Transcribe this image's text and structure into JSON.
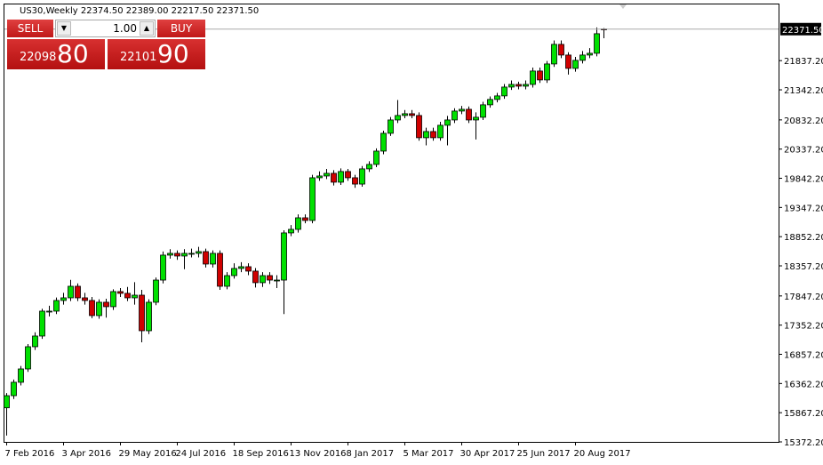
{
  "chart_data": {
    "type": "candlestick",
    "title": "US30,Weekly  22374.50 22389.00 22217.50 22371.50",
    "categories": [
      "7 Feb 2016",
      null,
      null,
      null,
      null,
      null,
      null,
      null,
      "3 Apr 2016",
      null,
      null,
      null,
      null,
      null,
      null,
      null,
      "29 May 2016",
      null,
      null,
      null,
      null,
      null,
      null,
      null,
      "24 Jul 2016",
      null,
      null,
      null,
      null,
      null,
      null,
      null,
      "18 Sep 2016",
      null,
      null,
      null,
      null,
      null,
      null,
      null,
      "13 Nov 2016",
      null,
      null,
      null,
      null,
      null,
      null,
      null,
      "8 Jan 2017",
      null,
      null,
      null,
      null,
      null,
      null,
      null,
      "5 Mar 2017",
      null,
      null,
      null,
      null,
      null,
      null,
      null,
      "30 Apr 2017",
      null,
      null,
      null,
      null,
      null,
      null,
      null,
      "25 Jun 2017",
      null,
      null,
      null,
      null,
      null,
      null,
      null,
      "20 Aug 2017",
      null,
      null,
      null,
      null
    ],
    "open": [
      15950,
      16156,
      16383,
      16609,
      16986,
      17167,
      17589,
      17589,
      17770,
      17815,
      18011,
      17815,
      17770,
      17514,
      17740,
      17665,
      17921,
      17891,
      17815,
      17860,
      17257,
      17740,
      18116,
      18539,
      18569,
      18524,
      18569,
      18569,
      18599,
      18388,
      18569,
      18011,
      18192,
      18313,
      18343,
      18268,
      18072,
      18192,
      18116,
      18116,
      18916,
      18976,
      19172,
      19127,
      19851,
      19881,
      19926,
      19776,
      19957,
      19851,
      19744,
      20002,
      20077,
      20303,
      20605,
      20831,
      20907,
      20937,
      20907,
      20530,
      20635,
      20530,
      20741,
      20831,
      20982,
      21012,
      20831,
      20877,
      21088,
      21179,
      21239,
      21389,
      21434,
      21404,
      21434,
      21661,
      21510,
      21781,
      22113,
      21932,
      21706,
      21842,
      21932,
      21962,
      22374.5
    ],
    "high": [
      16200,
      16430,
      16660,
      17030,
      17230,
      17630,
      17680,
      17820,
      17900,
      18120,
      18060,
      17900,
      17830,
      17790,
      17800,
      17960,
      17980,
      18000,
      18080,
      17950,
      17790,
      18160,
      18600,
      18640,
      18620,
      18640,
      18650,
      18680,
      18650,
      18620,
      18620,
      18250,
      18400,
      18420,
      18400,
      18320,
      18250,
      18250,
      18200,
      18960,
      19050,
      19230,
      19230,
      19900,
      19960,
      20000,
      19980,
      20010,
      20000,
      19900,
      20050,
      20130,
      20350,
      20650,
      20880,
      21170,
      21000,
      21000,
      20960,
      20700,
      20700,
      20800,
      20900,
      21030,
      21070,
      21060,
      20960,
      21140,
      21230,
      21290,
      21440,
      21500,
      21480,
      21500,
      21720,
      21720,
      21830,
      22180,
      22180,
      21980,
      21900,
      22000,
      22050,
      22400,
      22389
    ],
    "low": [
      15480,
      16100,
      16330,
      16560,
      16930,
      17120,
      17500,
      17540,
      17700,
      17760,
      17760,
      17700,
      17470,
      17460,
      17480,
      17610,
      17830,
      17760,
      17700,
      17060,
      17200,
      17690,
      18060,
      18480,
      18460,
      18300,
      18500,
      18500,
      18330,
      18330,
      17950,
      17960,
      18140,
      18250,
      18200,
      17990,
      18000,
      18050,
      17980,
      17540,
      18860,
      18920,
      19080,
      19080,
      19800,
      19830,
      19720,
      19730,
      19800,
      19680,
      19700,
      19950,
      20030,
      20250,
      20560,
      20780,
      20860,
      20860,
      20480,
      20400,
      20480,
      20480,
      20400,
      20780,
      20930,
      20780,
      20500,
      20830,
      21040,
      21130,
      21190,
      21340,
      21350,
      21350,
      21380,
      21460,
      21460,
      21730,
      21880,
      21600,
      21650,
      21790,
      21880,
      21910,
      22217.5
    ],
    "close": [
      16156,
      16383,
      16609,
      16986,
      17167,
      17589,
      17589,
      17770,
      17815,
      18011,
      17815,
      17770,
      17514,
      17740,
      17665,
      17921,
      17891,
      17815,
      17860,
      17257,
      17740,
      18116,
      18539,
      18569,
      18524,
      18569,
      18569,
      18599,
      18388,
      18569,
      18011,
      18192,
      18313,
      18343,
      18268,
      18072,
      18192,
      18116,
      18116,
      18916,
      18976,
      19172,
      19127,
      19851,
      19881,
      19926,
      19776,
      19957,
      19851,
      19744,
      20002,
      20077,
      20303,
      20605,
      20831,
      20907,
      20937,
      20907,
      20530,
      20635,
      20530,
      20741,
      20831,
      20982,
      21012,
      20831,
      20877,
      21088,
      21179,
      21239,
      21389,
      21434,
      21404,
      21434,
      21661,
      21510,
      21781,
      22113,
      21932,
      21706,
      21842,
      21932,
      21962,
      22294,
      22371.5
    ],
    "up_color": "#00e000",
    "down_color": "#d00000",
    "outline_color": "#000000",
    "ylim": [
      15372.2,
      22790
    ],
    "yticks": [
      {
        "value": 15372.2,
        "label": "15372.20"
      },
      {
        "value": 15867.2,
        "label": "15867.20"
      },
      {
        "value": 16362.2,
        "label": "16362.20"
      },
      {
        "value": 16857.2,
        "label": "16857.20"
      },
      {
        "value": 17352.2,
        "label": "17352.20"
      },
      {
        "value": 17847.2,
        "label": "17847.20"
      },
      {
        "value": 18357.2,
        "label": "18357.20"
      },
      {
        "value": 18852.2,
        "label": "18852.20"
      },
      {
        "value": 19347.2,
        "label": "19347.20"
      },
      {
        "value": 19842.2,
        "label": "19842.20"
      },
      {
        "value": 20337.2,
        "label": "20337.20"
      },
      {
        "value": 20832.2,
        "label": "20832.20"
      },
      {
        "value": 21342.2,
        "label": "21342.20"
      },
      {
        "value": 21837.2,
        "label": "21837.20"
      }
    ],
    "current_price": {
      "value": 22371.5,
      "label": "22371.50"
    },
    "grid": false
  },
  "trade_panel": {
    "sell": "SELL",
    "lots": "1.00",
    "buy": "BUY",
    "bid_main": "22098",
    "bid_big": "80",
    "ask_main": "22101",
    "ask_big": "90"
  }
}
